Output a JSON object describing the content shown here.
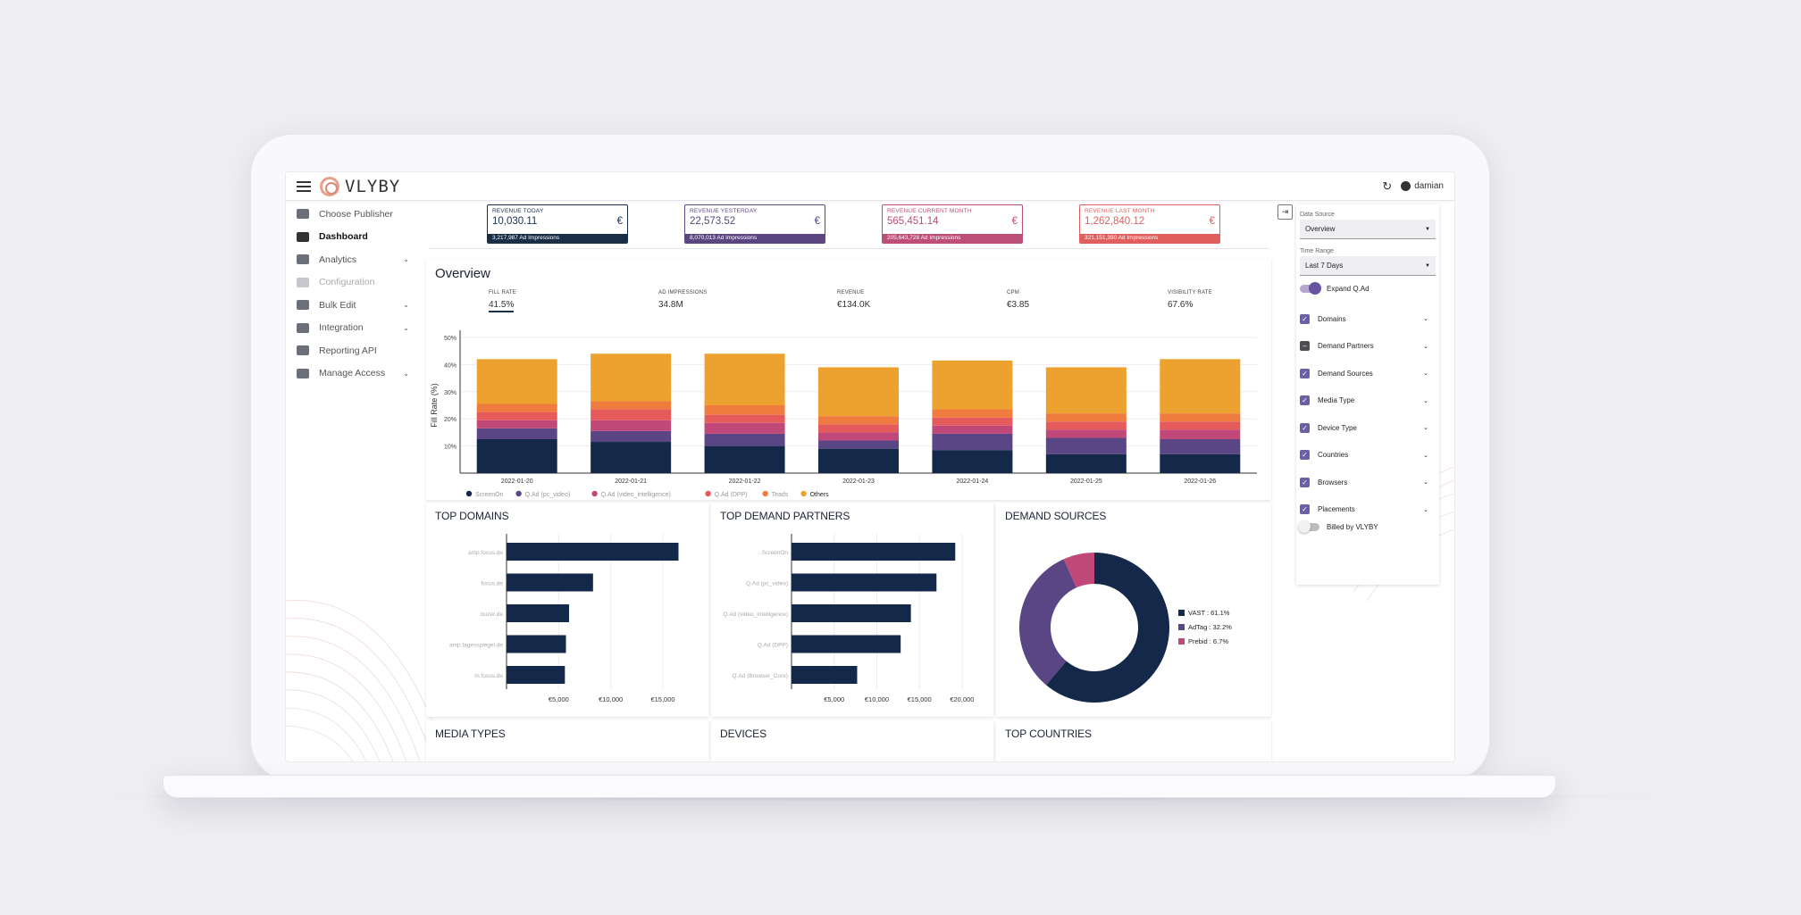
{
  "appbar": {
    "brand": "VLYBY",
    "user": "damian",
    "refresh_icon": "refresh-icon"
  },
  "sidebar": {
    "items": [
      {
        "label": "Choose Publisher",
        "icon": "people-icon",
        "state": "normal",
        "expandable": false
      },
      {
        "label": "Dashboard",
        "icon": "bar-chart-icon",
        "state": "active",
        "expandable": false
      },
      {
        "label": "Analytics",
        "icon": "document-icon",
        "state": "normal",
        "expandable": true
      },
      {
        "label": "Configuration",
        "icon": "sliders-icon",
        "state": "disabled",
        "expandable": false
      },
      {
        "label": "Bulk Edit",
        "icon": "pencil-icon",
        "state": "normal",
        "expandable": true
      },
      {
        "label": "Integration",
        "icon": "integration-icon",
        "state": "normal",
        "expandable": true
      },
      {
        "label": "Reporting API",
        "icon": "code-icon",
        "state": "normal",
        "expandable": false
      },
      {
        "label": "Manage Access",
        "icon": "people-icon",
        "state": "normal",
        "expandable": true
      }
    ]
  },
  "kpis": [
    {
      "label": "REVENUE TODAY",
      "value": "10,030.11",
      "currency": "€",
      "footer": "3,217,987 Ad Impressions",
      "color": "#1b2e48"
    },
    {
      "label": "REVENUE YESTERDAY",
      "value": "22,573.52",
      "currency": "€",
      "footer": "8,070,013 Ad Impressions",
      "color": "#5b4682"
    },
    {
      "label": "REVENUE CURRENT MONTH",
      "value": "565,451.14",
      "currency": "€",
      "footer": "205,643,728 Ad Impressions",
      "color": "#bb4f77"
    },
    {
      "label": "REVENUE LAST MONTH",
      "value": "1,262,840.12",
      "currency": "€",
      "footer": "321,151,390 Ad Impressions",
      "color": "#e05f5e"
    }
  ],
  "overview": {
    "title": "Overview",
    "metrics": [
      {
        "label": "FILL RATE",
        "value": "41.5%",
        "selected": true
      },
      {
        "label": "AD IMPRESSIONS",
        "value": "34.8M",
        "selected": false
      },
      {
        "label": "REVENUE",
        "value": "€134.0K",
        "selected": false
      },
      {
        "label": "CPM",
        "value": "€3.85",
        "selected": false
      },
      {
        "label": "VISIBILITY RATE",
        "value": "67.6%",
        "selected": false
      }
    ]
  },
  "chart_data": [
    {
      "type": "bar",
      "stacked": true,
      "title": "",
      "ylabel": "Fill Rate (%)",
      "xlabel": "",
      "ylim": [
        0,
        50
      ],
      "yticks": [
        "10%",
        "20%",
        "30%",
        "40%",
        "50%"
      ],
      "categories": [
        "2022-01-20",
        "2022-01-21",
        "2022-01-22",
        "2022-01-23",
        "2022-01-24",
        "2022-01-25",
        "2022-01-26"
      ],
      "series": [
        {
          "name": "ScreenOn",
          "color": "#14294a",
          "values": [
            12.5,
            11.5,
            10,
            9,
            8.5,
            7,
            7
          ]
        },
        {
          "name": "Q.Ad (pc_video)",
          "color": "#5a4585",
          "values": [
            4,
            4,
            4.5,
            3,
            6,
            6,
            5.5
          ]
        },
        {
          "name": "Q.Ad (video_intelligence)",
          "color": "#c1497a",
          "values": [
            3,
            4,
            4,
            3,
            3,
            3,
            3.5
          ]
        },
        {
          "name": "Q.Ad (DPP)",
          "color": "#e55b5c",
          "values": [
            3,
            4,
            3,
            3,
            3,
            3,
            3
          ]
        },
        {
          "name": "Teads",
          "color": "#ef7c3e",
          "values": [
            3,
            3,
            3.5,
            3,
            3,
            3,
            3
          ]
        },
        {
          "name": "Others",
          "color": "#eda12f",
          "values": [
            16.5,
            17.5,
            19,
            18,
            18,
            17,
            20
          ]
        }
      ]
    },
    {
      "type": "bar",
      "orientation": "horizontal",
      "title": "TOP DOMAINS",
      "categories": [
        "amp.focus.de",
        "focus.de",
        "buzer.de",
        "amp.tagesspiegel.de",
        "m.focus.de"
      ],
      "values": [
        16500,
        8300,
        6000,
        5700,
        5600
      ],
      "xlim": [
        0,
        18000
      ],
      "xticks": [
        "€5,000",
        "€10,000",
        "€15,000"
      ],
      "color": "#14294a"
    },
    {
      "type": "bar",
      "orientation": "horizontal",
      "title": "TOP DEMAND PARTNERS",
      "categories": [
        "ScreenOn",
        "Q.Ad (pc_video)",
        "Q.Ad (video_intelligence)",
        "Q.Ad (DPP)",
        "Q.Ad (Browser_Core)"
      ],
      "values": [
        19200,
        17000,
        14000,
        12800,
        7700
      ],
      "xlim": [
        0,
        22000
      ],
      "xticks": [
        "€5,000",
        "€10,000",
        "€15,000",
        "€20,000"
      ],
      "color": "#14294a"
    },
    {
      "type": "pie",
      "donut": true,
      "title": "DEMAND SOURCES",
      "slices": [
        {
          "label": "VAST",
          "value": 61.1,
          "legend": "VAST : 61.1%",
          "color": "#14294a"
        },
        {
          "label": "AdTag",
          "value": 32.2,
          "legend": "AdTag : 32.2%",
          "color": "#5a4585"
        },
        {
          "label": "Prebid",
          "value": 6.7,
          "legend": "Prebid : 6.7%",
          "color": "#c1497a"
        }
      ]
    }
  ],
  "bottom_cards": [
    "MEDIA TYPES",
    "DEVICES",
    "TOP COUNTRIES"
  ],
  "right_panel": {
    "data_source_label": "Data Source",
    "data_source_value": "Overview",
    "time_range_label": "Time Range",
    "time_range_value": "Last 7 Days",
    "expand_label": "Expand Q.Ad",
    "filters": [
      {
        "label": "Domains",
        "state": "checked"
      },
      {
        "label": "Demand Partners",
        "state": "indeterminate"
      },
      {
        "label": "Demand Sources",
        "state": "checked"
      },
      {
        "label": "Media Type",
        "state": "checked"
      },
      {
        "label": "Device Type",
        "state": "checked"
      },
      {
        "label": "Countries",
        "state": "checked"
      },
      {
        "label": "Browsers",
        "state": "checked"
      },
      {
        "label": "Placements",
        "state": "checked"
      }
    ],
    "billed_label": "Billed by VLYBY"
  }
}
